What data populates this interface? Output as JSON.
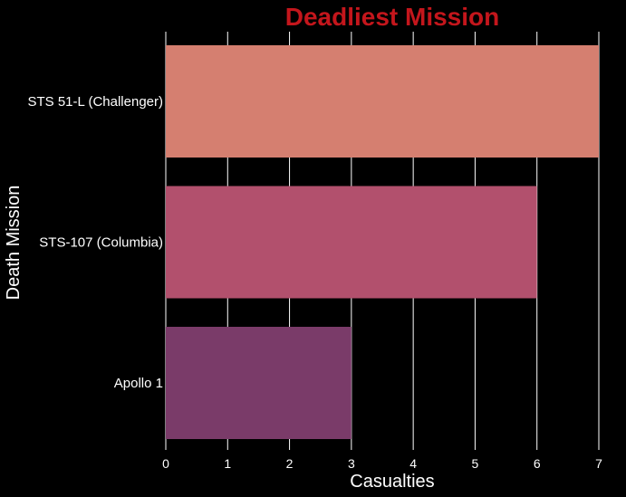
{
  "chart_data": {
    "type": "bar",
    "orientation": "horizontal",
    "title": "Deadliest Mission",
    "xlabel": "Casualties",
    "ylabel": "Death Mission",
    "categories": [
      "STS 51-L (Challenger)",
      "STS-107 (Columbia)",
      "Apollo 1"
    ],
    "values": [
      7,
      6,
      3
    ],
    "xlim": [
      0,
      7
    ],
    "xticks": [
      0,
      1,
      2,
      3,
      4,
      5,
      6,
      7
    ],
    "grid": true,
    "legend": "none"
  },
  "colors": {
    "background": "#000000",
    "title": "#c4161c",
    "text": "#ffffff",
    "grid": "#ffffff",
    "bars": [
      "#d57f70",
      "#b2506d",
      "#7a3b69"
    ]
  }
}
